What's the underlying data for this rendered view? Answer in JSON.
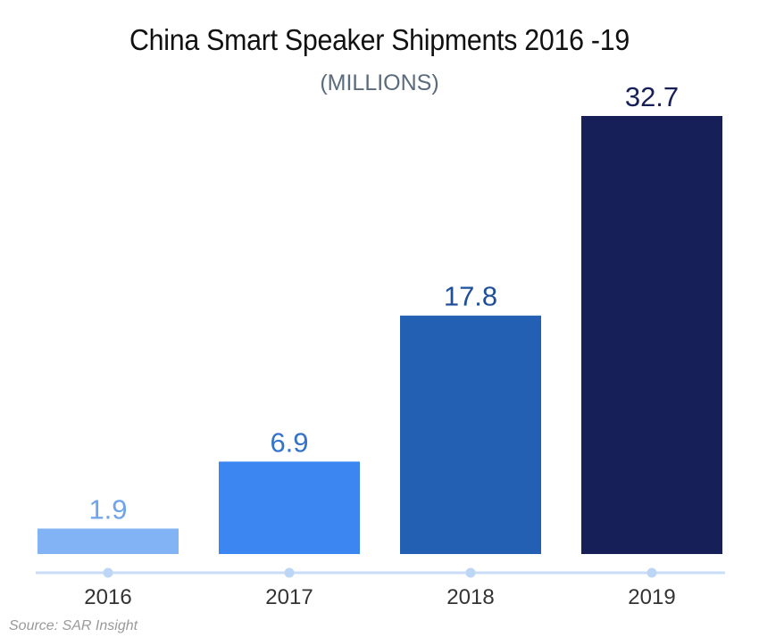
{
  "chart_data": {
    "type": "bar",
    "title": "China Smart Speaker Shipments 2016 -19",
    "subtitle": "(MILLIONS)",
    "categories": [
      "2016",
      "2017",
      "2018",
      "2019"
    ],
    "values": [
      1.9,
      6.9,
      17.8,
      32.7
    ],
    "value_labels": [
      "1.9",
      "6.9",
      "17.8",
      "32.7"
    ],
    "xlabel": "",
    "ylabel": "",
    "ylim": [
      0,
      32.7
    ],
    "grid": false,
    "legend": "none",
    "bar_colors": [
      "#82b3f5",
      "#3b86f0",
      "#2360b3",
      "#161f58"
    ],
    "label_colors": [
      "#6fa3ea",
      "#3572c9",
      "#1e4f99",
      "#161f58"
    ]
  },
  "source": "Source: SAR Insight",
  "colors": {
    "axis": "#c9ddf8",
    "axis_dot": "#bed6f6"
  }
}
